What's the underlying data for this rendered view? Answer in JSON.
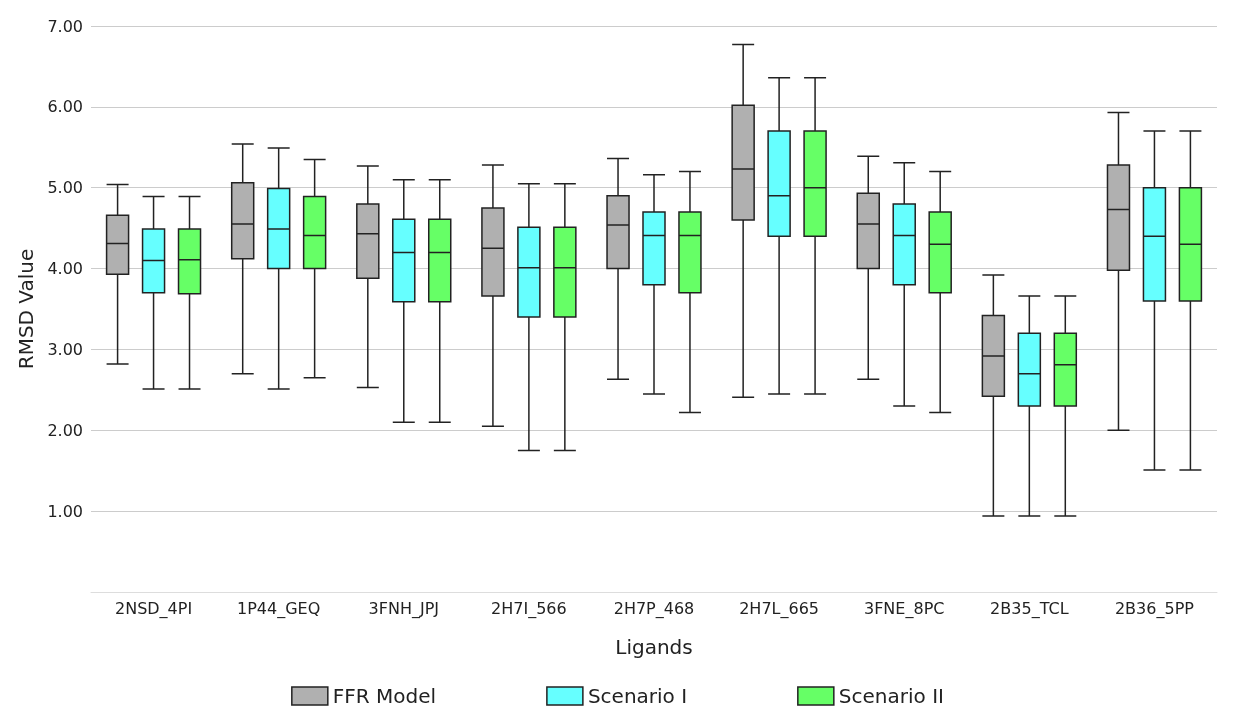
{
  "chart_data": {
    "type": "box",
    "xlabel": "Ligands",
    "ylabel": "RMSD Value",
    "categories": [
      "2NSD_4PI",
      "1P44_GEQ",
      "3FNH_JPJ",
      "2H7I_566",
      "2H7P_468",
      "2H7L_665",
      "3FNE_8PC",
      "2B35_TCL",
      "2B36_5PP"
    ],
    "ylim": [
      0,
      7
    ],
    "yticks": [
      {
        "value": 1,
        "label": "1.00"
      },
      {
        "value": 2,
        "label": "2.00"
      },
      {
        "value": 3,
        "label": "3.00"
      },
      {
        "value": 4,
        "label": "4.00"
      },
      {
        "value": 5,
        "label": "5.00"
      },
      {
        "value": 6,
        "label": "6.00"
      },
      {
        "value": 7,
        "label": "7.00"
      }
    ],
    "grid": "y",
    "legend": "bottom",
    "series": [
      {
        "name": "FFR Model",
        "color": "#b0b0b0",
        "boxes": [
          {
            "low": 2.82,
            "q1": 3.93,
            "median": 4.31,
            "q3": 4.66,
            "high": 5.04
          },
          {
            "low": 2.7,
            "q1": 4.12,
            "median": 4.55,
            "q3": 5.06,
            "high": 5.54
          },
          {
            "low": 2.53,
            "q1": 3.88,
            "median": 4.43,
            "q3": 4.8,
            "high": 5.27
          },
          {
            "low": 2.05,
            "q1": 3.66,
            "median": 4.25,
            "q3": 4.75,
            "high": 5.28
          },
          {
            "low": 2.63,
            "q1": 4.0,
            "median": 4.54,
            "q3": 4.9,
            "high": 5.36
          },
          {
            "low": 2.41,
            "q1": 4.6,
            "median": 5.23,
            "q3": 6.02,
            "high": 6.77
          },
          {
            "low": 2.63,
            "q1": 4.0,
            "median": 4.55,
            "q3": 4.93,
            "high": 5.39
          },
          {
            "low": 0.94,
            "q1": 2.42,
            "median": 2.92,
            "q3": 3.42,
            "high": 3.92
          },
          {
            "low": 2.0,
            "q1": 3.98,
            "median": 4.73,
            "q3": 5.28,
            "high": 5.93
          }
        ]
      },
      {
        "name": "Scenario I",
        "color": "#66ffff",
        "boxes": [
          {
            "low": 2.51,
            "q1": 3.7,
            "median": 4.1,
            "q3": 4.49,
            "high": 4.89
          },
          {
            "low": 2.51,
            "q1": 4.0,
            "median": 4.49,
            "q3": 4.99,
            "high": 5.49
          },
          {
            "low": 2.1,
            "q1": 3.59,
            "median": 4.2,
            "q3": 4.61,
            "high": 5.1
          },
          {
            "low": 1.75,
            "q1": 3.4,
            "median": 4.01,
            "q3": 4.51,
            "high": 5.05
          },
          {
            "low": 2.45,
            "q1": 3.8,
            "median": 4.41,
            "q3": 4.7,
            "high": 5.16
          },
          {
            "low": 2.45,
            "q1": 4.4,
            "median": 4.9,
            "q3": 5.7,
            "high": 6.36
          },
          {
            "low": 2.3,
            "q1": 3.8,
            "median": 4.41,
            "q3": 4.8,
            "high": 5.31
          },
          {
            "low": 0.94,
            "q1": 2.3,
            "median": 2.7,
            "q3": 3.2,
            "high": 3.66
          },
          {
            "low": 1.51,
            "q1": 3.6,
            "median": 4.4,
            "q3": 5.0,
            "high": 5.7
          }
        ]
      },
      {
        "name": "Scenario II",
        "color": "#66ff66",
        "boxes": [
          {
            "low": 2.51,
            "q1": 3.69,
            "median": 4.11,
            "q3": 4.49,
            "high": 4.89
          },
          {
            "low": 2.65,
            "q1": 4.0,
            "median": 4.41,
            "q3": 4.89,
            "high": 5.35
          },
          {
            "low": 2.1,
            "q1": 3.59,
            "median": 4.2,
            "q3": 4.61,
            "high": 5.1
          },
          {
            "low": 1.75,
            "q1": 3.4,
            "median": 4.01,
            "q3": 4.51,
            "high": 5.05
          },
          {
            "low": 2.22,
            "q1": 3.7,
            "median": 4.41,
            "q3": 4.7,
            "high": 5.2
          },
          {
            "low": 2.45,
            "q1": 4.4,
            "median": 5.0,
            "q3": 5.7,
            "high": 6.36
          },
          {
            "low": 2.22,
            "q1": 3.7,
            "median": 4.3,
            "q3": 4.7,
            "high": 5.2
          },
          {
            "low": 0.94,
            "q1": 2.3,
            "median": 2.81,
            "q3": 3.2,
            "high": 3.66
          },
          {
            "low": 1.51,
            "q1": 3.6,
            "median": 4.3,
            "q3": 5.0,
            "high": 5.7
          }
        ]
      }
    ]
  }
}
